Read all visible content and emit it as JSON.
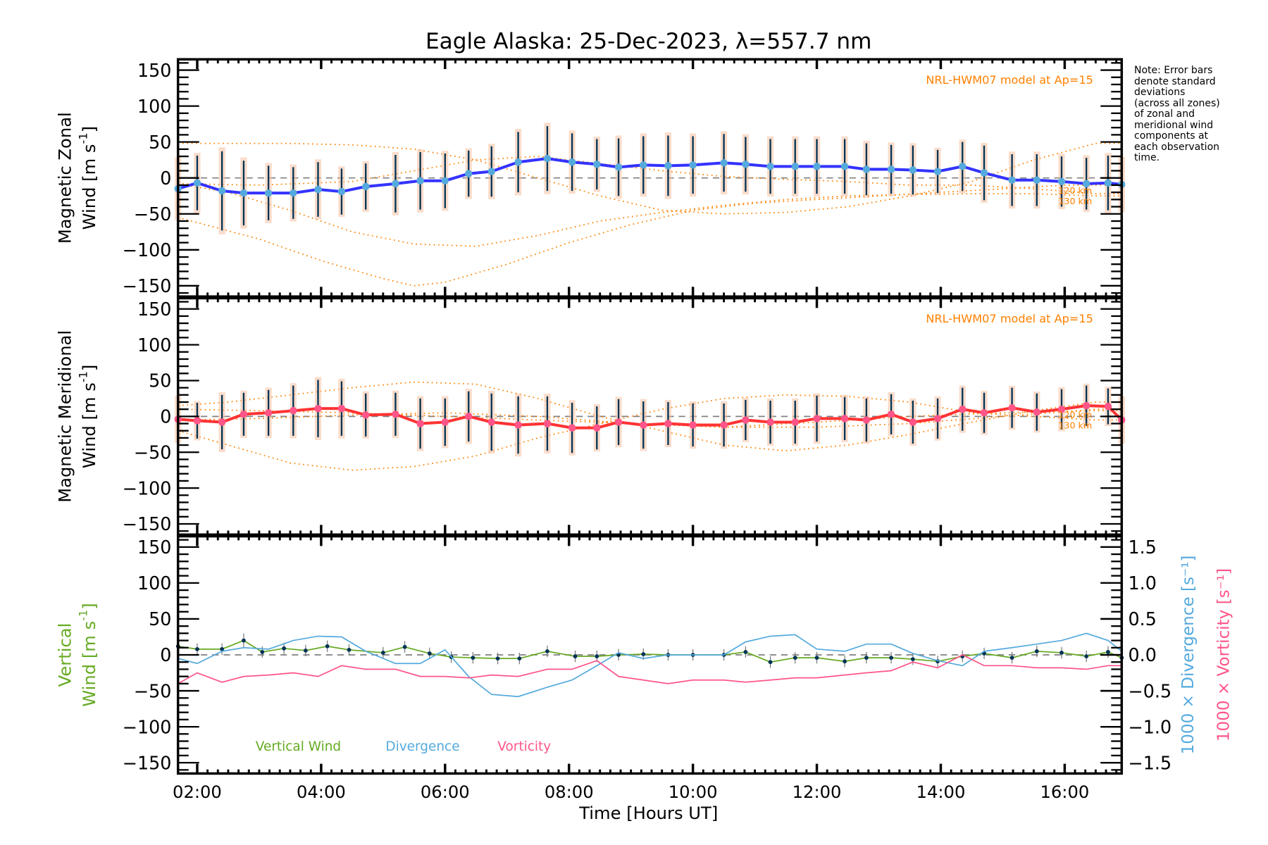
{
  "figure": {
    "title": "Eagle Alaska: 25-Dec-2023, λ=557.7 nm",
    "note": "Note: Error bars\ndenote standard\ndeviations\n(across all zones)\nof zonal and\nmeridional wind\ncomponents at\neach observation\ntime.",
    "xlabel": "Time [Hours UT]",
    "colors": {
      "zonal": "#3333ff",
      "meridional": "#ff3333",
      "model": "#ff8000",
      "vertical": "#66aa22",
      "divergence": "#55aadd",
      "vorticity": "#ff5588",
      "zero_line": "#808080",
      "errorbar": "#003355",
      "marker_zonal": "#55aadd",
      "marker_meridional": "#ff5588"
    }
  },
  "chart_data": [
    {
      "type": "line",
      "panel": "zonal",
      "ylabel": "Magnetic Zonal Wind [m s^-1]",
      "ylabel_lines": [
        "Magnetic Zonal",
        "Wind [m s",
        "-1",
        "]"
      ],
      "ylim": [
        -165,
        165
      ],
      "yticks": [
        -150,
        -100,
        -50,
        0,
        50,
        100,
        150
      ],
      "xlim": [
        1.69,
        16.92
      ],
      "xticks": [
        "02:00",
        "04:00",
        "06:00",
        "08:00",
        "10:00",
        "12:00",
        "14:00",
        "16:00"
      ],
      "xtick_values": [
        2,
        4,
        6,
        8,
        10,
        12,
        14,
        16
      ],
      "model_label": "NRL-HWM07 model at Ap=15",
      "model_level_labels": [
        "120 km",
        "130 km"
      ],
      "series": [
        {
          "name": "Zonal wind",
          "x": [
            1.69,
            2.0,
            2.4,
            2.75,
            3.15,
            3.55,
            3.95,
            4.33,
            4.72,
            5.2,
            5.6,
            6.0,
            6.38,
            6.75,
            7.18,
            7.65,
            8.05,
            8.45,
            8.8,
            9.2,
            9.6,
            10.0,
            10.5,
            10.85,
            11.25,
            11.65,
            12.0,
            12.45,
            12.8,
            13.2,
            13.55,
            13.95,
            14.35,
            14.7,
            15.15,
            15.55,
            15.95,
            16.35,
            16.7,
            16.92
          ],
          "y": [
            -15,
            -7,
            -18,
            -21,
            -21,
            -21,
            -16,
            -19,
            -12,
            -8,
            -4,
            -4,
            6,
            9,
            22,
            27,
            22,
            19,
            15,
            18,
            17,
            18,
            21,
            19,
            16,
            16,
            16,
            16,
            12,
            12,
            11,
            9,
            16,
            7,
            -3,
            -3,
            -5,
            -8,
            -7,
            -9
          ],
          "err": [
            40,
            38,
            55,
            45,
            38,
            36,
            38,
            32,
            32,
            40,
            40,
            38,
            32,
            35,
            42,
            45,
            40,
            35,
            40,
            40,
            42,
            40,
            40,
            38,
            38,
            38,
            38,
            38,
            36,
            34,
            34,
            30,
            34,
            38,
            36,
            36,
            35,
            36,
            38,
            35
          ]
        }
      ],
      "model_curves": [
        {
          "name": "model-zonal-1",
          "x": [
            1.69,
            3,
            4,
            5,
            5.5,
            6,
            7,
            8,
            9,
            10,
            11,
            12,
            13,
            14,
            15,
            16,
            16.92
          ],
          "y": [
            -55,
            -85,
            -115,
            -140,
            -150,
            -145,
            -120,
            -90,
            -65,
            -45,
            -35,
            -30,
            -25,
            -20,
            -15,
            -10,
            -10
          ]
        },
        {
          "name": "model-zonal-2",
          "x": [
            1.69,
            2.5,
            3.5,
            4.5,
            5.5,
            6.5,
            7.5,
            8.5,
            9.5,
            10.5,
            11.5,
            12.5,
            13.5,
            14.5,
            15.5,
            16.5,
            16.92
          ],
          "y": [
            -8,
            -20,
            -45,
            -75,
            -92,
            -95,
            -80,
            -60,
            -48,
            -38,
            -30,
            -25,
            -23,
            -22,
            -22,
            -25,
            -25
          ]
        },
        {
          "name": "model-zonal-3",
          "x": [
            1.69,
            2.5,
            3.5,
            4.5,
            5.5,
            6.5,
            7.5,
            8.5,
            9.5,
            10.5,
            11.5,
            12.5,
            13.5,
            14.5,
            15.5,
            16.5,
            16.92
          ],
          "y": [
            48,
            48,
            48,
            46,
            40,
            25,
            0,
            -25,
            -45,
            -50,
            -48,
            -40,
            -25,
            -5,
            25,
            48,
            48
          ]
        },
        {
          "name": "model-zonal-4",
          "x": [
            1.69,
            3,
            4.5,
            5.5,
            6.5,
            7.5,
            8.5,
            9.5,
            10.5,
            11.5,
            12.5,
            13.5,
            14.5,
            15.5,
            16.5,
            16.92
          ],
          "y": [
            -8,
            -10,
            -5,
            10,
            25,
            30,
            20,
            10,
            2,
            -2,
            -5,
            -10,
            -10,
            -15,
            -22,
            -22
          ]
        }
      ]
    },
    {
      "type": "line",
      "panel": "meridional",
      "ylabel": "Magnetic Meridional Wind [m s^-1]",
      "ylabel_lines": [
        "Magnetic Meridional",
        "Wind [m s",
        "-1",
        "]"
      ],
      "ylim": [
        -165,
        165
      ],
      "yticks": [
        -150,
        -100,
        -50,
        0,
        50,
        100,
        150
      ],
      "xlim": [
        1.69,
        16.92
      ],
      "model_label": "NRL-HWM07 model at Ap=15",
      "model_level_labels": [
        "120 km",
        "130 km"
      ],
      "series": [
        {
          "name": "Meridional wind",
          "x": [
            1.69,
            2.0,
            2.4,
            2.75,
            3.15,
            3.55,
            3.95,
            4.33,
            4.72,
            5.2,
            5.6,
            6.0,
            6.38,
            6.75,
            7.18,
            7.65,
            8.05,
            8.45,
            8.8,
            9.2,
            9.6,
            10.0,
            10.5,
            10.85,
            11.25,
            11.65,
            12.0,
            12.45,
            12.8,
            13.2,
            13.55,
            13.95,
            14.35,
            14.7,
            15.15,
            15.55,
            15.95,
            16.35,
            16.7,
            16.92
          ],
          "y": [
            -4,
            -6,
            -8,
            3,
            5,
            8,
            11,
            11,
            2,
            3,
            -10,
            -8,
            0,
            -8,
            -12,
            -10,
            -16,
            -16,
            -8,
            -12,
            -10,
            -12,
            -12,
            -5,
            -8,
            -8,
            -3,
            -3,
            -5,
            3,
            -8,
            -3,
            10,
            5,
            12,
            6,
            10,
            15,
            14,
            -5
          ],
          "err": [
            30,
            25,
            38,
            30,
            32,
            35,
            40,
            38,
            30,
            30,
            35,
            33,
            35,
            40,
            40,
            38,
            35,
            30,
            32,
            33,
            30,
            30,
            30,
            28,
            30,
            30,
            32,
            30,
            30,
            28,
            30,
            28,
            30,
            28,
            28,
            26,
            28,
            28,
            25,
            30
          ]
        }
      ],
      "model_curves": [
        {
          "name": "model-merid-1",
          "x": [
            1.69,
            2.5,
            3.5,
            4.5,
            5.5,
            6.5,
            7.5,
            8.5,
            9.5,
            10.5,
            11.5,
            12.5,
            13.5,
            14.5,
            15.5,
            16.5,
            16.92
          ],
          "y": [
            15,
            20,
            30,
            40,
            48,
            45,
            25,
            0,
            -20,
            -40,
            -48,
            -40,
            -25,
            -8,
            8,
            20,
            20
          ]
        },
        {
          "name": "model-merid-2",
          "x": [
            1.69,
            2.5,
            3.5,
            4.5,
            5.5,
            6.5,
            7.5,
            8.5,
            9.5,
            10.5,
            11.5,
            12.5,
            13.5,
            14.5,
            15.5,
            16.5,
            16.92
          ],
          "y": [
            -20,
            -40,
            -65,
            -75,
            -70,
            -55,
            -30,
            -10,
            10,
            25,
            30,
            28,
            20,
            5,
            0,
            -5,
            -5
          ]
        },
        {
          "name": "model-merid-3",
          "x": [
            1.69,
            3,
            4.5,
            6,
            7.5,
            9,
            10.5,
            12,
            13.5,
            15,
            16.5,
            16.92
          ],
          "y": [
            10,
            8,
            5,
            0,
            -5,
            -10,
            -15,
            -15,
            -10,
            0,
            10,
            10
          ]
        },
        {
          "name": "model-merid-4",
          "x": [
            1.69,
            3,
            4.5,
            6,
            7.5,
            9,
            10.5,
            12,
            13.5,
            15,
            16.5,
            16.92
          ],
          "y": [
            -5,
            -3,
            2,
            5,
            0,
            -10,
            -15,
            -8,
            0,
            5,
            8,
            8
          ]
        }
      ]
    },
    {
      "type": "line",
      "panel": "vertical",
      "ylabel": "Vertical Wind [m s^-1]",
      "ylabel_lines": [
        "Vertical",
        "Wind [m s",
        "-1",
        "]"
      ],
      "ylim": [
        -165,
        165
      ],
      "yticks": [
        -150,
        -100,
        -50,
        0,
        50,
        100,
        150
      ],
      "y2label_divergence": "1000 × Divergence [s^-1]",
      "y2label_vorticity": "1000 × Vorticity [s^-1]",
      "y2lim": [
        -1.65,
        1.65
      ],
      "y2ticks": [
        "-1.5",
        "-1.0",
        "-0.5",
        "0.0",
        "0.5",
        "1.0",
        "1.5"
      ],
      "y2tick_values": [
        -1.5,
        -1.0,
        -0.5,
        0.0,
        0.5,
        1.0,
        1.5
      ],
      "xlim": [
        1.69,
        16.92
      ],
      "xticks": [
        "02:00",
        "04:00",
        "06:00",
        "08:00",
        "10:00",
        "12:00",
        "14:00",
        "16:00"
      ],
      "xtick_values": [
        2,
        4,
        6,
        8,
        10,
        12,
        14,
        16
      ],
      "legend": [
        "Vertical Wind",
        "Divergence",
        "Vorticity"
      ],
      "legend_placement": "bottom-left",
      "series": [
        {
          "name": "Vertical Wind",
          "axis": "left",
          "x": [
            1.69,
            2.0,
            2.4,
            2.75,
            3.05,
            3.4,
            3.75,
            4.1,
            4.45,
            5.0,
            5.35,
            5.75,
            6.1,
            6.45,
            6.85,
            7.2,
            7.65,
            8.1,
            8.45,
            8.8,
            9.2,
            9.6,
            10.0,
            10.5,
            10.85,
            11.25,
            11.65,
            12.0,
            12.45,
            12.8,
            13.2,
            13.55,
            13.95,
            14.35,
            14.7,
            15.15,
            15.55,
            15.95,
            16.35,
            16.7,
            16.92
          ],
          "y": [
            12,
            8,
            8,
            20,
            4,
            9,
            6,
            12,
            7,
            3,
            11,
            2,
            -3,
            -4,
            -5,
            -5,
            5,
            -2,
            -2,
            0,
            1,
            0,
            0,
            0,
            4,
            -10,
            -4,
            -4,
            -9,
            -4,
            -4,
            -6,
            -9,
            -2,
            2,
            -4,
            5,
            3,
            -2,
            4,
            -4
          ],
          "err": [
            8,
            8,
            8,
            10,
            8,
            8,
            8,
            8,
            8,
            8,
            8,
            8,
            8,
            8,
            8,
            8,
            8,
            8,
            8,
            8,
            8,
            8,
            8,
            8,
            8,
            8,
            8,
            8,
            8,
            8,
            8,
            8,
            8,
            8,
            8,
            8,
            8,
            8,
            8,
            8,
            8
          ]
        },
        {
          "name": "Divergence",
          "axis": "right",
          "x": [
            1.69,
            2.0,
            2.4,
            2.75,
            3.15,
            3.55,
            3.95,
            4.33,
            4.72,
            5.2,
            5.6,
            6.0,
            6.38,
            6.75,
            7.18,
            7.65,
            8.05,
            8.45,
            8.8,
            9.2,
            9.6,
            10.0,
            10.5,
            10.85,
            11.25,
            11.65,
            12.0,
            12.45,
            12.8,
            13.2,
            13.55,
            13.95,
            14.35,
            14.7,
            15.15,
            15.55,
            15.95,
            16.35,
            16.7,
            16.92
          ],
          "y": [
            -0.05,
            -0.12,
            0.05,
            0.1,
            0.08,
            0.2,
            0.26,
            0.25,
            0.05,
            -0.12,
            -0.12,
            0.07,
            -0.3,
            -0.55,
            -0.58,
            -0.45,
            -0.35,
            -0.15,
            0.03,
            -0.05,
            0.0,
            0.0,
            0.0,
            0.18,
            0.26,
            0.28,
            0.08,
            0.05,
            0.15,
            0.15,
            0.02,
            -0.08,
            -0.15,
            0.05,
            0.1,
            0.15,
            0.2,
            0.3,
            0.2,
            0.05
          ],
          "unit_scale": "x1000"
        },
        {
          "name": "Vorticity",
          "axis": "right",
          "x": [
            1.69,
            2.0,
            2.4,
            2.75,
            3.15,
            3.55,
            3.95,
            4.33,
            4.72,
            5.2,
            5.6,
            6.0,
            6.38,
            6.75,
            7.18,
            7.65,
            8.05,
            8.45,
            8.8,
            9.2,
            9.6,
            10.0,
            10.5,
            10.85,
            11.25,
            11.65,
            12.0,
            12.45,
            12.8,
            13.2,
            13.55,
            13.95,
            14.35,
            14.7,
            15.15,
            15.55,
            15.95,
            16.35,
            16.7,
            16.92
          ],
          "y": [
            -0.4,
            -0.25,
            -0.38,
            -0.3,
            -0.28,
            -0.25,
            -0.3,
            -0.15,
            -0.2,
            -0.2,
            -0.3,
            -0.3,
            -0.32,
            -0.28,
            -0.3,
            -0.2,
            -0.2,
            -0.08,
            -0.3,
            -0.35,
            -0.4,
            -0.35,
            -0.35,
            -0.38,
            -0.35,
            -0.32,
            -0.32,
            -0.28,
            -0.25,
            -0.22,
            -0.1,
            -0.18,
            0.0,
            -0.15,
            -0.15,
            -0.18,
            -0.18,
            -0.2,
            -0.15,
            -0.15
          ],
          "unit_scale": "x1000"
        }
      ]
    }
  ]
}
